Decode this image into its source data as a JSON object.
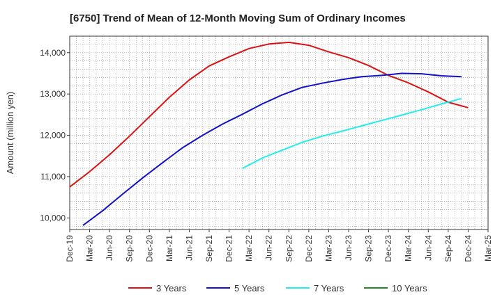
{
  "chart_data": {
    "type": "line",
    "title": "[6750]  Trend of Mean of 12-Month Moving Sum of Ordinary Incomes",
    "xlabel": "",
    "ylabel": "Amount (million yen)",
    "ylim": [
      9720,
      14400
    ],
    "yticks": [
      10000,
      11000,
      12000,
      13000,
      14000
    ],
    "ytick_labels": [
      "10,000",
      "11,000",
      "12,000",
      "13,000",
      "14,000"
    ],
    "x_tick_labels": [
      "Dec-19",
      "Mar-20",
      "Jun-20",
      "Sep-20",
      "Dec-20",
      "Mar-21",
      "Jun-21",
      "Sep-21",
      "Dec-21",
      "Mar-22",
      "Jun-22",
      "Sep-22",
      "Dec-22",
      "Mar-23",
      "Jun-23",
      "Sep-23",
      "Dec-23",
      "Mar-24",
      "Jun-24",
      "Sep-24",
      "Dec-24",
      "Mar-25"
    ],
    "x_range_months": [
      0,
      63
    ],
    "grid": true,
    "legend_position": "bottom",
    "series": [
      {
        "name": "3 Years",
        "color": "#dd1111",
        "x": [
          0,
          3,
          6,
          9,
          12,
          15,
          18,
          21,
          24,
          27,
          30,
          33,
          36,
          39,
          42,
          45,
          48,
          51,
          54,
          57,
          60
        ],
        "values": [
          10750,
          11120,
          11530,
          11980,
          12450,
          12920,
          13340,
          13680,
          13900,
          14100,
          14210,
          14250,
          14180,
          14020,
          13880,
          13690,
          13450,
          13270,
          13050,
          12800,
          12670
        ]
      },
      {
        "name": "5 Years",
        "color": "#1111cc",
        "x": [
          2,
          5,
          8,
          11,
          14,
          17,
          20,
          23,
          26,
          29,
          32,
          35,
          38,
          41,
          44,
          47,
          50,
          53,
          56,
          59
        ],
        "values": [
          9820,
          10180,
          10580,
          10970,
          11340,
          11700,
          12000,
          12270,
          12510,
          12760,
          12980,
          13160,
          13260,
          13350,
          13420,
          13450,
          13500,
          13490,
          13440,
          13420
        ]
      },
      {
        "name": "7 Years",
        "color": "#22eeee",
        "x": [
          26,
          29,
          32,
          35,
          38,
          41,
          44,
          47,
          50,
          53,
          56,
          59
        ],
        "values": [
          11200,
          11450,
          11640,
          11830,
          11980,
          12100,
          12230,
          12360,
          12490,
          12620,
          12760,
          12890
        ]
      },
      {
        "name": "10 Years",
        "color": "#228b22",
        "x": [],
        "values": []
      }
    ]
  }
}
